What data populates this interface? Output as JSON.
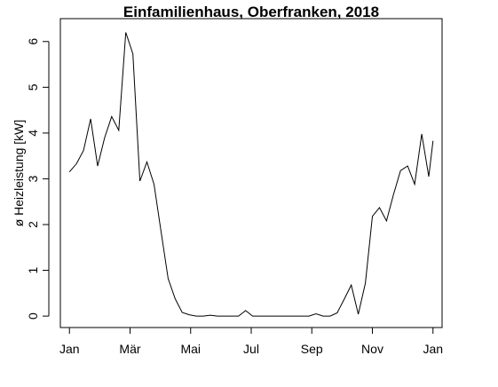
{
  "chart_data": {
    "type": "line",
    "title": "Einfamilienhaus, Oberfranken, 2018",
    "xlabel": "",
    "ylabel": "ø Heizleistung [kW]",
    "ylim": [
      -0.25,
      6.5
    ],
    "yticks": [
      0,
      1,
      2,
      3,
      4,
      5,
      6
    ],
    "xlim": [
      -0.3,
      12.3
    ],
    "xticks": [
      {
        "pos": 0,
        "label": "Jan"
      },
      {
        "pos": 2,
        "label": "Mär"
      },
      {
        "pos": 4,
        "label": "Mai"
      },
      {
        "pos": 6,
        "label": "Jul"
      },
      {
        "pos": 8,
        "label": "Sep"
      },
      {
        "pos": 10,
        "label": "Nov"
      },
      {
        "pos": 12,
        "label": "Jan"
      }
    ],
    "grid": false,
    "legend": "none",
    "line_color": "#000000",
    "series": [
      {
        "x": [
          0.0,
          0.233,
          0.465,
          0.698,
          0.93,
          1.163,
          1.395,
          1.628,
          1.86,
          2.093,
          2.326,
          2.558,
          2.791,
          3.023,
          3.256,
          3.488,
          3.721,
          3.953,
          4.186,
          4.419,
          4.651,
          4.884,
          5.116,
          5.349,
          5.581,
          5.814,
          6.047,
          6.279,
          6.512,
          6.744,
          6.977,
          7.209,
          7.442,
          7.674,
          7.907,
          8.14,
          8.372,
          8.605,
          8.837,
          9.07,
          9.302,
          9.535,
          9.767,
          10.0,
          10.233,
          10.465,
          10.698,
          10.93,
          11.163,
          11.395,
          11.628,
          11.86,
          12.0
        ],
        "y": [
          3.15,
          3.33,
          3.62,
          4.31,
          3.28,
          3.9,
          4.36,
          4.06,
          6.2,
          5.73,
          2.95,
          3.37,
          2.88,
          1.85,
          0.82,
          0.38,
          0.08,
          0.03,
          0.0,
          0.0,
          0.02,
          0.0,
          0.0,
          0.0,
          0.0,
          0.12,
          0.0,
          0.0,
          0.0,
          0.0,
          0.0,
          0.0,
          0.0,
          0.0,
          0.0,
          0.05,
          0.0,
          0.0,
          0.07,
          0.37,
          0.68,
          0.04,
          0.72,
          2.18,
          2.37,
          2.08,
          2.66,
          3.18,
          3.28,
          2.88,
          3.98,
          3.05,
          3.83
        ]
      }
    ]
  }
}
